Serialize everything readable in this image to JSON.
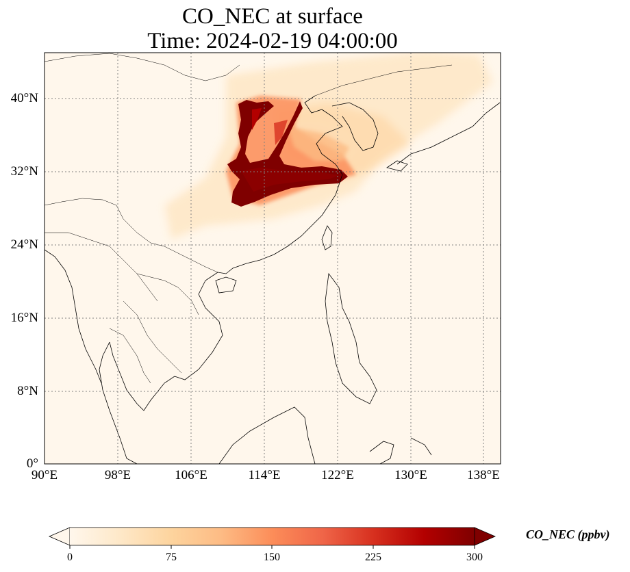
{
  "title_line1": "CO_NEC at surface",
  "title_line2": "Time: 2024-02-19 04:00:00",
  "x_ticks": [
    "90°E",
    "98°E",
    "106°E",
    "114°E",
    "122°E",
    "130°E",
    "138°E"
  ],
  "y_ticks": [
    "40°N",
    "32°N",
    "24°N",
    "16°N",
    "8°N",
    "0°"
  ],
  "colorbar": {
    "label": "CO_NEC (ppbv)",
    "ticks": [
      "0",
      "75",
      "150",
      "225",
      "300"
    ],
    "colormap": "OrRd",
    "extend": "both"
  },
  "map_extent": {
    "lon": [
      90,
      139.5
    ],
    "lat": [
      0,
      45
    ]
  },
  "colors": {
    "background_low": "#fff7ec",
    "high": "#7f0000",
    "coastline": "#000000",
    "grid": "#808080"
  }
}
